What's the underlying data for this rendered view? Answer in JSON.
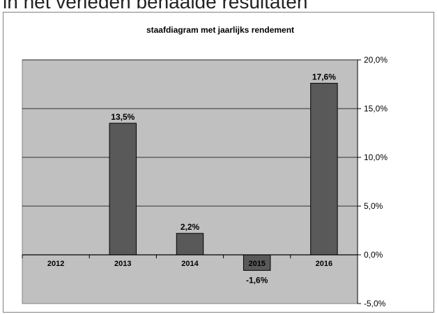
{
  "header": {
    "title": "in het verleden behaalde resultaten"
  },
  "chart_data": {
    "type": "bar",
    "title": "staafdiagram met jaarlijks rendement",
    "xlabel": "",
    "ylabel": "",
    "categories": [
      "2012",
      "2013",
      "2014",
      "2015",
      "2016"
    ],
    "values": [
      null,
      13.5,
      2.2,
      -1.6,
      17.6
    ],
    "data_labels": [
      "",
      "13,5%",
      "2,2%",
      "-1,6%",
      "17,6%"
    ],
    "ylim": [
      -5,
      20
    ],
    "yticks": [
      20,
      15,
      10,
      5,
      0,
      -5
    ],
    "ytick_labels": [
      "20,0%",
      "15,0%",
      "10,0%",
      "5,0%",
      "0,0%",
      "-5,0%"
    ],
    "y_axis_side": "right",
    "grid": true,
    "legend": "none",
    "colors": {
      "bar": "#595959",
      "plot_background": "#c0c0c0",
      "grid": "#000000"
    }
  }
}
